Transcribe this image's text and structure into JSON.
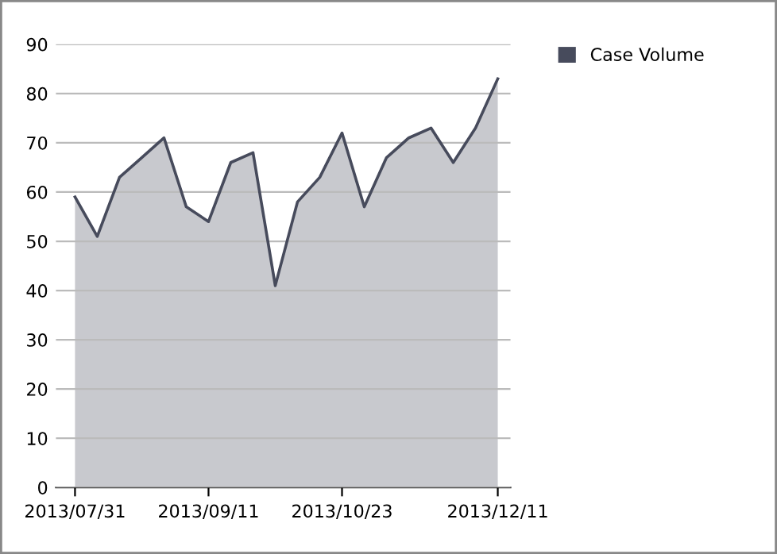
{
  "chart_data": {
    "type": "area",
    "x": [
      "2013-07-31",
      "2013-08-07",
      "2013-08-14",
      "2013-08-21",
      "2013-08-28",
      "2013-09-04",
      "2013-09-11",
      "2013-09-18",
      "2013-09-25",
      "2013-10-02",
      "2013-10-09",
      "2013-10-16",
      "2013-10-23",
      "2013-10-30",
      "2013-11-06",
      "2013-11-13",
      "2013-11-20",
      "2013-11-27",
      "2013-12-04",
      "2013-12-11"
    ],
    "series": [
      {
        "name": "Case Volume",
        "color": "#474b5c",
        "values": [
          59,
          51,
          63,
          67,
          71,
          57,
          54,
          66,
          68,
          41,
          58,
          63,
          72,
          57,
          67,
          71,
          73,
          66,
          73,
          83
        ]
      }
    ],
    "xlim": [
      "2013-07-25",
      "2013-12-15"
    ],
    "xticks": [
      {
        "value": "2013-07-31",
        "label": "2013/07/31"
      },
      {
        "value": "2013-09-11",
        "label": "2013/09/11"
      },
      {
        "value": "2013-10-23",
        "label": "2013/10/23"
      },
      {
        "value": "2013-12-11",
        "label": "2013/12/11"
      }
    ],
    "ylim": [
      0,
      90
    ],
    "yticks": [
      0,
      10,
      20,
      30,
      40,
      50,
      60,
      70,
      80,
      90
    ],
    "grid": "y",
    "legend": "top right",
    "marker": "none",
    "line_style": "solid"
  }
}
